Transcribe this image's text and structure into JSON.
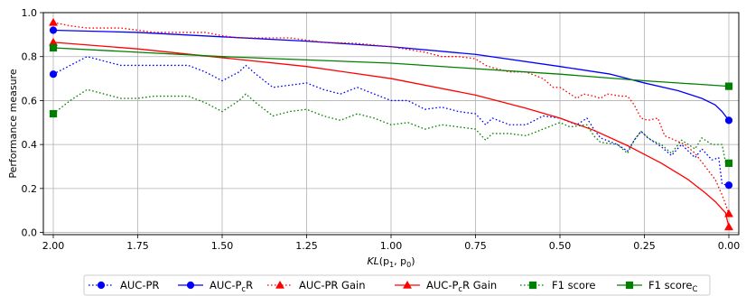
{
  "chart_data": {
    "type": "line",
    "xlabel_main": "KL",
    "xlabel_args": "(p",
    "xlabel_sub1": "1",
    "xlabel_comma": ", p",
    "xlabel_sub0": "0",
    "xlabel_close": ")",
    "ylabel": "Performance measure",
    "xlim": [
      2.0,
      0.0
    ],
    "ylim": [
      0.0,
      1.0
    ],
    "x_reversed": true,
    "grid": true,
    "legend_placement": "bottom",
    "xticks": [
      {
        "value": 2.0,
        "label": "2.00"
      },
      {
        "value": 1.75,
        "label": "1.75"
      },
      {
        "value": 1.5,
        "label": "1.50"
      },
      {
        "value": 1.25,
        "label": "1.25"
      },
      {
        "value": 1.0,
        "label": "1.00"
      },
      {
        "value": 0.75,
        "label": "0.75"
      },
      {
        "value": 0.5,
        "label": "0.50"
      },
      {
        "value": 0.25,
        "label": "0.25"
      },
      {
        "value": 0.0,
        "label": "0.00"
      }
    ],
    "yticks": [
      {
        "value": 0.0,
        "label": "0.0"
      },
      {
        "value": 0.2,
        "label": "0.2"
      },
      {
        "value": 0.4,
        "label": "0.4"
      },
      {
        "value": 0.6,
        "label": "0.6"
      },
      {
        "value": 0.8,
        "label": "0.8"
      },
      {
        "value": 1.0,
        "label": "1.0"
      }
    ],
    "series": [
      {
        "name": "AUC-PR",
        "color": "#0000ff",
        "dash": "dotted",
        "marker": "circle",
        "endpoint_markers": [
          [
            2.0,
            0.72
          ],
          [
            0.0,
            0.215
          ]
        ],
        "points": [
          [
            2.0,
            0.72
          ],
          [
            1.95,
            0.76
          ],
          [
            1.9,
            0.8
          ],
          [
            1.85,
            0.78
          ],
          [
            1.8,
            0.76
          ],
          [
            1.75,
            0.76
          ],
          [
            1.7,
            0.76
          ],
          [
            1.65,
            0.76
          ],
          [
            1.6,
            0.76
          ],
          [
            1.55,
            0.73
          ],
          [
            1.5,
            0.69
          ],
          [
            1.45,
            0.73
          ],
          [
            1.43,
            0.76
          ],
          [
            1.4,
            0.72
          ],
          [
            1.35,
            0.66
          ],
          [
            1.3,
            0.67
          ],
          [
            1.25,
            0.68
          ],
          [
            1.2,
            0.65
          ],
          [
            1.15,
            0.63
          ],
          [
            1.1,
            0.66
          ],
          [
            1.05,
            0.63
          ],
          [
            1.0,
            0.6
          ],
          [
            0.95,
            0.6
          ],
          [
            0.9,
            0.56
          ],
          [
            0.85,
            0.57
          ],
          [
            0.8,
            0.55
          ],
          [
            0.75,
            0.54
          ],
          [
            0.72,
            0.49
          ],
          [
            0.7,
            0.52
          ],
          [
            0.65,
            0.49
          ],
          [
            0.6,
            0.49
          ],
          [
            0.55,
            0.53
          ],
          [
            0.5,
            0.52
          ],
          [
            0.45,
            0.49
          ],
          [
            0.42,
            0.52
          ],
          [
            0.4,
            0.47
          ],
          [
            0.38,
            0.43
          ],
          [
            0.33,
            0.4
          ],
          [
            0.3,
            0.37
          ],
          [
            0.28,
            0.42
          ],
          [
            0.26,
            0.46
          ],
          [
            0.24,
            0.43
          ],
          [
            0.2,
            0.39
          ],
          [
            0.17,
            0.35
          ],
          [
            0.14,
            0.4
          ],
          [
            0.1,
            0.34
          ],
          [
            0.08,
            0.38
          ],
          [
            0.05,
            0.33
          ],
          [
            0.03,
            0.34
          ],
          [
            0.02,
            0.22
          ],
          [
            0.0,
            0.215
          ]
        ]
      },
      {
        "name": "AUC-P$_c$R",
        "legend_main": "AUC-P",
        "legend_sub": "c",
        "legend_tail": "R",
        "color": "#0000ff",
        "dash": "solid",
        "marker": "circle",
        "endpoint_markers": [
          [
            2.0,
            0.92
          ],
          [
            0.0,
            0.51
          ]
        ],
        "points": [
          [
            2.0,
            0.92
          ],
          [
            1.75,
            0.91
          ],
          [
            1.5,
            0.89
          ],
          [
            1.25,
            0.87
          ],
          [
            1.0,
            0.845
          ],
          [
            0.75,
            0.81
          ],
          [
            0.5,
            0.755
          ],
          [
            0.35,
            0.72
          ],
          [
            0.25,
            0.68
          ],
          [
            0.15,
            0.645
          ],
          [
            0.08,
            0.61
          ],
          [
            0.04,
            0.58
          ],
          [
            0.02,
            0.55
          ],
          [
            0.0,
            0.51
          ]
        ]
      },
      {
        "name": "AUC-PR Gain",
        "color": "#ff0000",
        "dash": "dotted",
        "marker": "triangle",
        "endpoint_markers": [
          [
            2.0,
            0.955
          ],
          [
            0.0,
            0.085
          ]
        ],
        "points": [
          [
            2.0,
            0.955
          ],
          [
            1.95,
            0.94
          ],
          [
            1.9,
            0.93
          ],
          [
            1.8,
            0.93
          ],
          [
            1.7,
            0.91
          ],
          [
            1.6,
            0.91
          ],
          [
            1.55,
            0.91
          ],
          [
            1.5,
            0.895
          ],
          [
            1.45,
            0.885
          ],
          [
            1.4,
            0.885
          ],
          [
            1.3,
            0.885
          ],
          [
            1.25,
            0.875
          ],
          [
            1.2,
            0.865
          ],
          [
            1.1,
            0.86
          ],
          [
            1.0,
            0.845
          ],
          [
            0.9,
            0.82
          ],
          [
            0.85,
            0.8
          ],
          [
            0.8,
            0.8
          ],
          [
            0.75,
            0.79
          ],
          [
            0.72,
            0.76
          ],
          [
            0.7,
            0.75
          ],
          [
            0.65,
            0.73
          ],
          [
            0.6,
            0.73
          ],
          [
            0.55,
            0.7
          ],
          [
            0.52,
            0.66
          ],
          [
            0.5,
            0.66
          ],
          [
            0.48,
            0.64
          ],
          [
            0.45,
            0.61
          ],
          [
            0.43,
            0.63
          ],
          [
            0.4,
            0.62
          ],
          [
            0.38,
            0.61
          ],
          [
            0.36,
            0.63
          ],
          [
            0.32,
            0.62
          ],
          [
            0.3,
            0.62
          ],
          [
            0.28,
            0.58
          ],
          [
            0.26,
            0.52
          ],
          [
            0.24,
            0.51
          ],
          [
            0.21,
            0.52
          ],
          [
            0.19,
            0.44
          ],
          [
            0.16,
            0.42
          ],
          [
            0.13,
            0.4
          ],
          [
            0.1,
            0.36
          ],
          [
            0.07,
            0.3
          ],
          [
            0.04,
            0.24
          ],
          [
            0.02,
            0.17
          ],
          [
            0.01,
            0.13
          ],
          [
            0.0,
            0.085
          ]
        ]
      },
      {
        "name": "AUC-P$_c$R Gain",
        "legend_main": "AUC-P",
        "legend_sub": "c",
        "legend_tail": "R Gain",
        "color": "#ff0000",
        "dash": "solid",
        "marker": "triangle",
        "endpoint_markers": [
          [
            2.0,
            0.865
          ],
          [
            0.0,
            0.025
          ]
        ],
        "points": [
          [
            2.0,
            0.865
          ],
          [
            1.75,
            0.835
          ],
          [
            1.5,
            0.795
          ],
          [
            1.25,
            0.755
          ],
          [
            1.0,
            0.7
          ],
          [
            0.75,
            0.625
          ],
          [
            0.6,
            0.565
          ],
          [
            0.5,
            0.52
          ],
          [
            0.4,
            0.465
          ],
          [
            0.3,
            0.395
          ],
          [
            0.2,
            0.315
          ],
          [
            0.12,
            0.24
          ],
          [
            0.07,
            0.18
          ],
          [
            0.04,
            0.14
          ],
          [
            0.01,
            0.09
          ],
          [
            0.0,
            0.025
          ]
        ]
      },
      {
        "name": "F1 score",
        "color": "#008000",
        "dash": "dotted",
        "marker": "square",
        "endpoint_markers": [
          [
            2.0,
            0.54
          ],
          [
            0.0,
            0.315
          ]
        ],
        "points": [
          [
            2.0,
            0.54
          ],
          [
            1.95,
            0.6
          ],
          [
            1.9,
            0.65
          ],
          [
            1.85,
            0.63
          ],
          [
            1.8,
            0.61
          ],
          [
            1.75,
            0.61
          ],
          [
            1.7,
            0.62
          ],
          [
            1.65,
            0.62
          ],
          [
            1.6,
            0.62
          ],
          [
            1.55,
            0.59
          ],
          [
            1.5,
            0.55
          ],
          [
            1.45,
            0.6
          ],
          [
            1.43,
            0.63
          ],
          [
            1.4,
            0.59
          ],
          [
            1.35,
            0.53
          ],
          [
            1.3,
            0.55
          ],
          [
            1.25,
            0.56
          ],
          [
            1.2,
            0.53
          ],
          [
            1.15,
            0.51
          ],
          [
            1.1,
            0.54
          ],
          [
            1.05,
            0.52
          ],
          [
            1.0,
            0.49
          ],
          [
            0.95,
            0.5
          ],
          [
            0.9,
            0.47
          ],
          [
            0.85,
            0.49
          ],
          [
            0.8,
            0.48
          ],
          [
            0.75,
            0.47
          ],
          [
            0.72,
            0.42
          ],
          [
            0.7,
            0.45
          ],
          [
            0.65,
            0.45
          ],
          [
            0.6,
            0.44
          ],
          [
            0.55,
            0.47
          ],
          [
            0.5,
            0.5
          ],
          [
            0.47,
            0.48
          ],
          [
            0.42,
            0.49
          ],
          [
            0.4,
            0.44
          ],
          [
            0.38,
            0.41
          ],
          [
            0.33,
            0.4
          ],
          [
            0.3,
            0.36
          ],
          [
            0.28,
            0.42
          ],
          [
            0.26,
            0.46
          ],
          [
            0.23,
            0.42
          ],
          [
            0.2,
            0.4
          ],
          [
            0.17,
            0.36
          ],
          [
            0.14,
            0.42
          ],
          [
            0.1,
            0.38
          ],
          [
            0.08,
            0.43
          ],
          [
            0.05,
            0.4
          ],
          [
            0.02,
            0.4
          ],
          [
            0.01,
            0.32
          ],
          [
            0.0,
            0.315
          ]
        ]
      },
      {
        "name": "F1 score$_C$",
        "legend_main": "F1 score",
        "legend_sub": "C",
        "legend_tail": "",
        "color": "#008000",
        "dash": "solid",
        "marker": "square",
        "endpoint_markers": [
          [
            2.0,
            0.84
          ],
          [
            0.0,
            0.665
          ]
        ],
        "points": [
          [
            2.0,
            0.84
          ],
          [
            1.75,
            0.82
          ],
          [
            1.5,
            0.8
          ],
          [
            1.25,
            0.785
          ],
          [
            1.0,
            0.77
          ],
          [
            0.75,
            0.745
          ],
          [
            0.5,
            0.72
          ],
          [
            0.25,
            0.69
          ],
          [
            0.1,
            0.675
          ],
          [
            0.0,
            0.665
          ]
        ]
      }
    ]
  }
}
